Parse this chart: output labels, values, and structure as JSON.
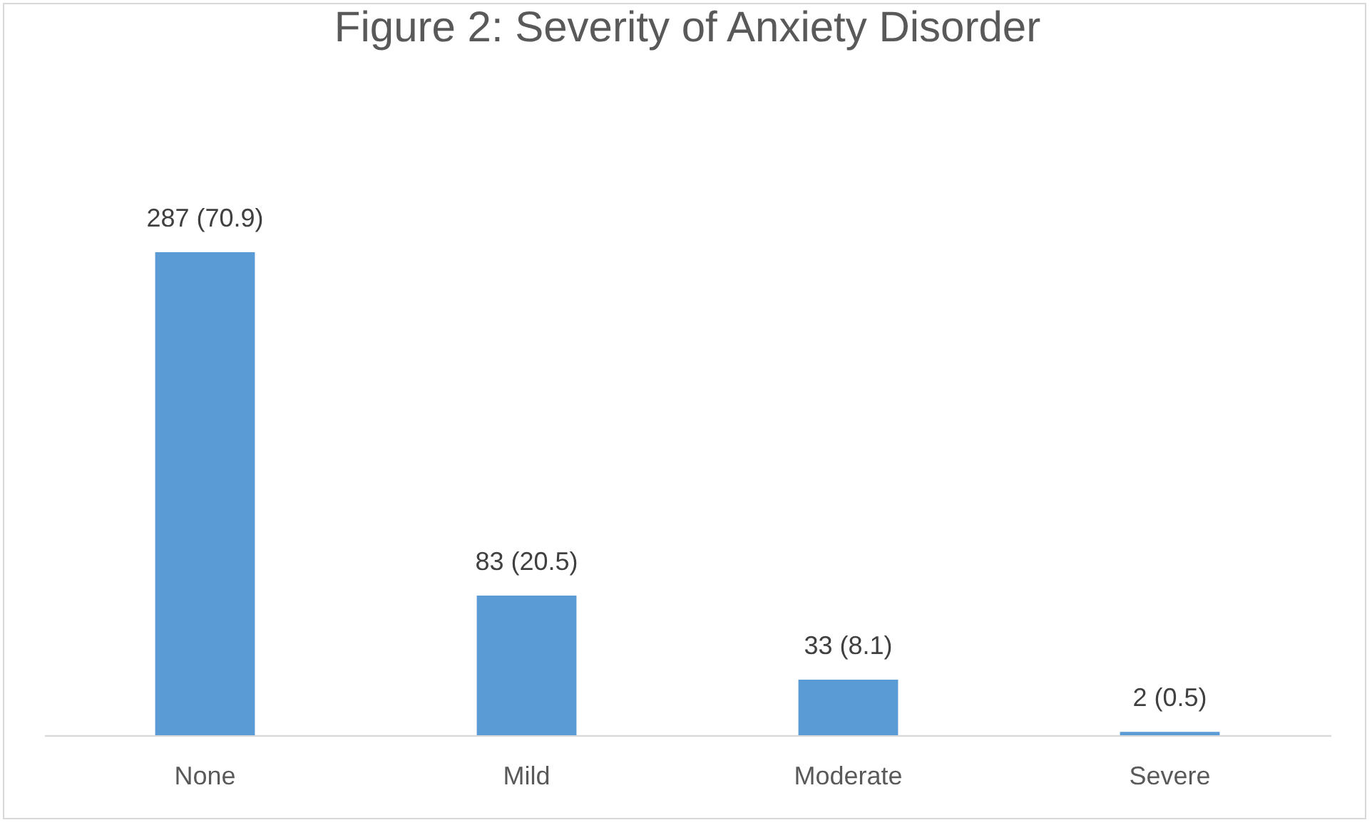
{
  "chart_data": {
    "type": "bar",
    "title": "Figure 2: Severity of Anxiety Disorder",
    "categories": [
      "None",
      "Mild",
      "Moderate",
      "Severe"
    ],
    "values": [
      287,
      83,
      33,
      2
    ],
    "value_labels": [
      "287 (70.9)",
      "83 (20.5)",
      "33 (8.1)",
      "2 (0.5)"
    ],
    "color": "#5b9bd5"
  }
}
